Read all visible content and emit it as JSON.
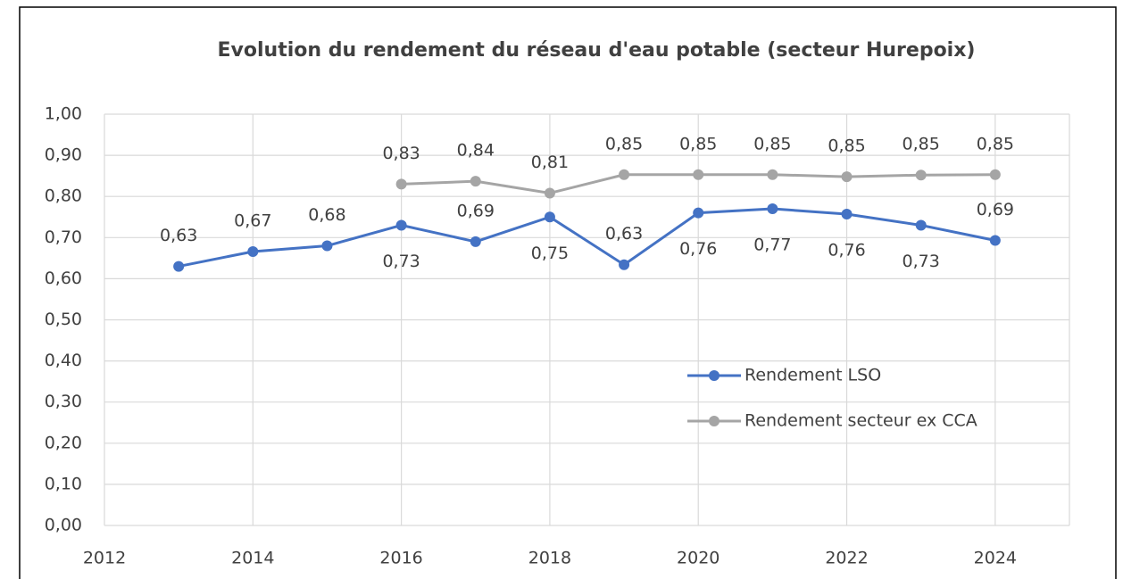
{
  "chart_data": {
    "type": "line",
    "title": "Evolution du rendement du réseau d'eau potable (secteur Hurepoix)",
    "x": [
      2013,
      2014,
      2015,
      2016,
      2017,
      2018,
      2019,
      2020,
      2021,
      2022,
      2023,
      2024
    ],
    "series": [
      {
        "name": "Rendement LSO",
        "color": "#4472c4",
        "values": [
          0.63,
          0.666,
          0.68,
          0.73,
          0.69,
          0.75,
          0.634,
          0.76,
          0.77,
          0.757,
          0.73,
          0.693
        ],
        "value_labels": [
          "0,63",
          "0,67",
          "0,68",
          "0,73",
          "0,69",
          "0,75",
          "0,63",
          "0,76",
          "0,77",
          "0,76",
          "0,73",
          "0,69"
        ]
      },
      {
        "name": "Rendement secteur ex CCA",
        "color": "#a5a5a5",
        "values": [
          null,
          null,
          null,
          0.83,
          0.837,
          0.808,
          0.853,
          0.853,
          0.853,
          0.848,
          0.852,
          0.853
        ],
        "value_labels": [
          null,
          null,
          null,
          "0,83",
          "0,84",
          "0,81",
          "0,85",
          "0,85",
          "0,85",
          "0,85",
          "0,85",
          "0,85"
        ]
      }
    ],
    "xlim": [
      2012,
      2025
    ],
    "xticks": [
      2012,
      2014,
      2016,
      2018,
      2020,
      2022,
      2024
    ],
    "ylim": [
      0,
      1
    ],
    "yticks": [
      {
        "value": 0,
        "label": "0,00"
      },
      {
        "value": 0.1,
        "label": "0,10"
      },
      {
        "value": 0.2,
        "label": "0,20"
      },
      {
        "value": 0.3,
        "label": "0,30"
      },
      {
        "value": 0.4,
        "label": "0,40"
      },
      {
        "value": 0.5,
        "label": "0,50"
      },
      {
        "value": 0.6,
        "label": "0,60"
      },
      {
        "value": 0.7,
        "label": "0,70"
      },
      {
        "value": 0.8,
        "label": "0,80"
      },
      {
        "value": 0.9,
        "label": "0,90"
      },
      {
        "value": 1,
        "label": "1,00"
      }
    ],
    "grid": true,
    "legend_position": "right"
  }
}
